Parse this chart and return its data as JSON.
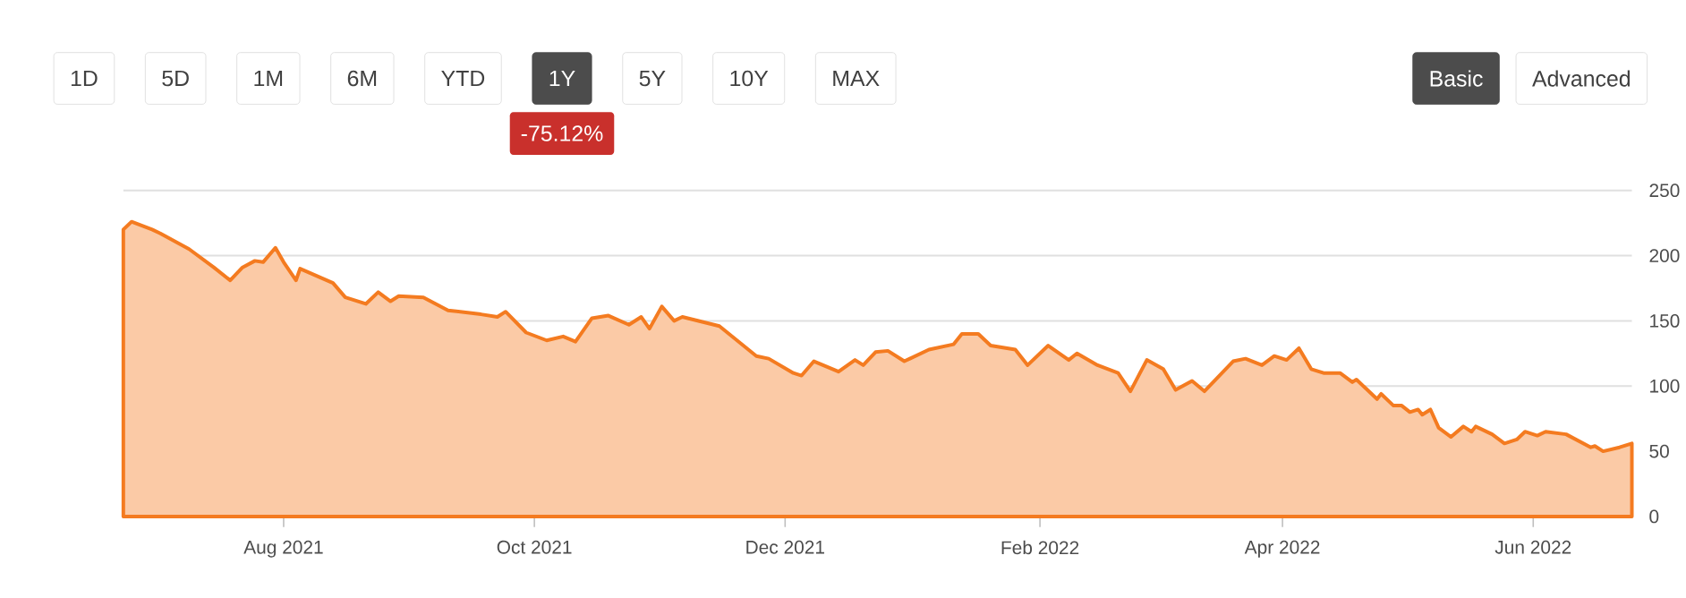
{
  "chart_data": {
    "type": "area",
    "color": "#f47b20",
    "x": [
      "2021-06-23",
      "2021-06-25",
      "2021-06-30",
      "2021-07-02",
      "2021-07-09",
      "2021-07-15",
      "2021-07-19",
      "2021-07-22",
      "2021-07-25",
      "2021-07-27",
      "2021-07-30",
      "2021-08-01",
      "2021-08-04",
      "2021-08-05",
      "2021-08-13",
      "2021-08-16",
      "2021-08-21",
      "2021-08-24",
      "2021-08-27",
      "2021-08-29",
      "2021-09-04",
      "2021-09-10",
      "2021-09-18",
      "2021-09-22",
      "2021-09-24",
      "2021-09-29",
      "2021-10-04",
      "2021-10-08",
      "2021-10-11",
      "2021-10-15",
      "2021-10-19",
      "2021-10-24",
      "2021-10-27",
      "2021-10-29",
      "2021-11-01",
      "2021-11-04",
      "2021-11-06",
      "2021-11-15",
      "2021-11-24",
      "2021-11-27",
      "2021-12-03",
      "2021-12-05",
      "2021-12-08",
      "2021-12-14",
      "2021-12-18",
      "2021-12-20",
      "2021-12-23",
      "2021-12-26",
      "2021-12-30",
      "2022-01-05",
      "2022-01-11",
      "2022-01-13",
      "2022-01-17",
      "2022-01-20",
      "2022-01-26",
      "2022-01-29",
      "2022-02-03",
      "2022-02-08",
      "2022-02-10",
      "2022-02-15",
      "2022-02-20",
      "2022-02-23",
      "2022-02-27",
      "2022-03-03",
      "2022-03-06",
      "2022-03-10",
      "2022-03-13",
      "2022-03-20",
      "2022-03-23",
      "2022-03-27",
      "2022-03-30",
      "2022-04-02",
      "2022-04-05",
      "2022-04-08",
      "2022-04-11",
      "2022-04-15",
      "2022-04-18",
      "2022-04-19",
      "2022-04-24",
      "2022-04-25",
      "2022-04-28",
      "2022-04-30",
      "2022-05-02",
      "2022-05-04",
      "2022-05-05",
      "2022-05-07",
      "2022-05-09",
      "2022-05-12",
      "2022-05-15",
      "2022-05-17",
      "2022-05-18",
      "2022-05-22",
      "2022-05-25",
      "2022-05-28",
      "2022-05-30",
      "2022-06-02",
      "2022-06-04",
      "2022-06-09",
      "2022-06-15",
      "2022-06-16",
      "2022-06-18",
      "2022-06-22",
      "2022-06-25"
    ],
    "values": [
      220,
      226,
      220,
      217,
      205,
      191,
      181,
      191,
      196,
      195,
      206,
      195,
      181,
      190,
      179,
      168,
      163,
      172,
      165,
      169,
      168,
      158,
      155,
      153,
      157,
      141,
      135,
      138,
      134,
      152,
      154,
      147,
      153,
      144,
      161,
      150,
      153,
      146,
      123,
      121,
      110,
      108,
      119,
      111,
      120,
      116,
      126,
      127,
      119,
      128,
      132,
      140,
      140,
      131,
      128,
      116,
      131,
      120,
      125,
      116,
      110,
      96,
      120,
      113,
      97,
      104,
      96,
      119,
      121,
      116,
      123,
      120,
      129,
      113,
      110,
      110,
      103,
      105,
      90,
      94,
      85,
      85,
      80,
      82,
      78,
      82,
      68,
      61,
      69,
      65,
      69,
      63,
      56,
      59,
      65,
      62,
      65,
      63,
      53,
      54,
      50,
      53,
      56
    ],
    "xlim": [
      "2021-06-23",
      "2022-06-25"
    ],
    "xticks": [
      {
        "value": "2021-08-01",
        "label": "Aug 2021"
      },
      {
        "value": "2021-10-01",
        "label": "Oct 2021"
      },
      {
        "value": "2021-12-01",
        "label": "Dec 2021"
      },
      {
        "value": "2022-02-01",
        "label": "Feb 2022"
      },
      {
        "value": "2022-04-01",
        "label": "Apr 2022"
      },
      {
        "value": "2022-06-01",
        "label": "Jun 2022"
      }
    ],
    "ylim": [
      0,
      250
    ],
    "yticks": [
      0,
      50,
      100,
      150,
      200,
      250
    ],
    "grid": "y",
    "annotations": [
      "1D",
      "5D",
      "1M",
      "6M",
      "YTD",
      "1Y",
      "5Y",
      "10Y",
      "MAX",
      "Basic",
      "Advanced",
      "-75.12%"
    ]
  }
}
